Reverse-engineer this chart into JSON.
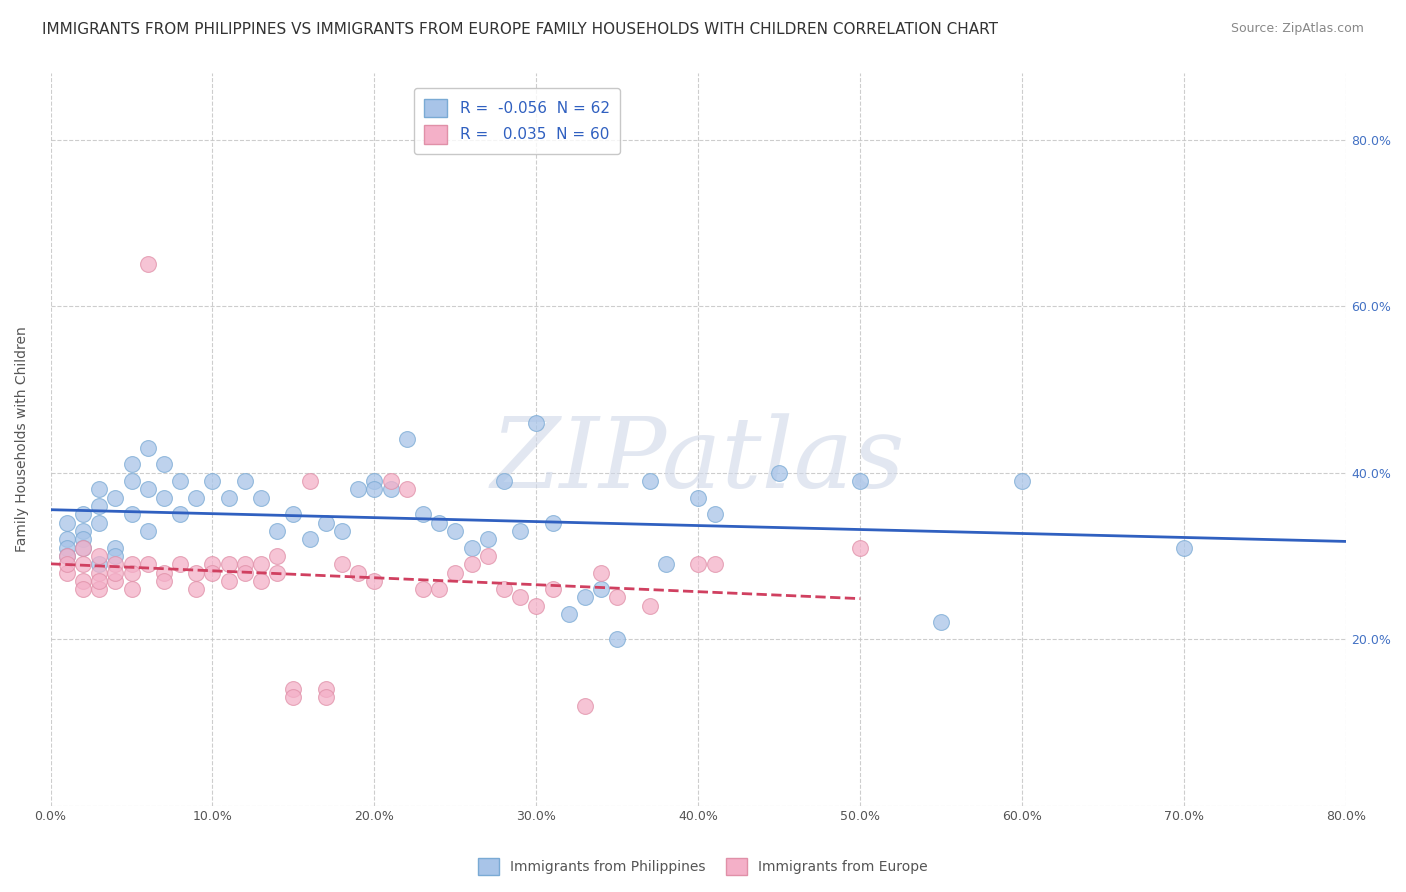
{
  "title": "IMMIGRANTS FROM PHILIPPINES VS IMMIGRANTS FROM EUROPE FAMILY HOUSEHOLDS WITH CHILDREN CORRELATION CHART",
  "source": "Source: ZipAtlas.com",
  "ylabel": "Family Households with Children",
  "legend_series": [
    {
      "label": "Immigrants from Philippines",
      "R": -0.056,
      "N": 62
    },
    {
      "label": "Immigrants from Europe",
      "R": 0.035,
      "N": 60
    }
  ],
  "xlim": [
    0.0,
    0.8
  ],
  "ylim": [
    0.0,
    0.88
  ],
  "xticks": [
    0.0,
    0.1,
    0.2,
    0.3,
    0.4,
    0.5,
    0.6,
    0.7,
    0.8
  ],
  "yticks": [
    0.0,
    0.2,
    0.4,
    0.6,
    0.8
  ],
  "phil_scatter_color": "#a8c4e8",
  "phil_edge_color": "#7aaad4",
  "eur_scatter_color": "#f4b0c8",
  "eur_edge_color": "#e090a8",
  "phil_trend_color": "#3060c0",
  "eur_trend_color": "#d04060",
  "background_color": "#ffffff",
  "grid_color": "#c8c8c8",
  "watermark_text": "ZIPatlas",
  "title_fontsize": 11,
  "axis_label_fontsize": 10,
  "tick_fontsize": 9,
  "right_tick_color": "#4472c4",
  "philippines_scatter": [
    [
      0.01,
      0.32
    ],
    [
      0.01,
      0.34
    ],
    [
      0.01,
      0.31
    ],
    [
      0.01,
      0.3
    ],
    [
      0.02,
      0.33
    ],
    [
      0.02,
      0.35
    ],
    [
      0.02,
      0.32
    ],
    [
      0.02,
      0.31
    ],
    [
      0.03,
      0.34
    ],
    [
      0.03,
      0.36
    ],
    [
      0.03,
      0.29
    ],
    [
      0.03,
      0.38
    ],
    [
      0.04,
      0.37
    ],
    [
      0.04,
      0.31
    ],
    [
      0.04,
      0.3
    ],
    [
      0.05,
      0.41
    ],
    [
      0.05,
      0.39
    ],
    [
      0.05,
      0.35
    ],
    [
      0.06,
      0.43
    ],
    [
      0.06,
      0.38
    ],
    [
      0.06,
      0.33
    ],
    [
      0.07,
      0.41
    ],
    [
      0.07,
      0.37
    ],
    [
      0.08,
      0.39
    ],
    [
      0.08,
      0.35
    ],
    [
      0.09,
      0.37
    ],
    [
      0.1,
      0.39
    ],
    [
      0.11,
      0.37
    ],
    [
      0.12,
      0.39
    ],
    [
      0.13,
      0.37
    ],
    [
      0.14,
      0.33
    ],
    [
      0.15,
      0.35
    ],
    [
      0.16,
      0.32
    ],
    [
      0.17,
      0.34
    ],
    [
      0.18,
      0.33
    ],
    [
      0.19,
      0.38
    ],
    [
      0.2,
      0.39
    ],
    [
      0.2,
      0.38
    ],
    [
      0.21,
      0.38
    ],
    [
      0.22,
      0.44
    ],
    [
      0.23,
      0.35
    ],
    [
      0.24,
      0.34
    ],
    [
      0.25,
      0.33
    ],
    [
      0.26,
      0.31
    ],
    [
      0.27,
      0.32
    ],
    [
      0.28,
      0.39
    ],
    [
      0.29,
      0.33
    ],
    [
      0.3,
      0.46
    ],
    [
      0.31,
      0.34
    ],
    [
      0.32,
      0.23
    ],
    [
      0.33,
      0.25
    ],
    [
      0.34,
      0.26
    ],
    [
      0.35,
      0.2
    ],
    [
      0.37,
      0.39
    ],
    [
      0.38,
      0.29
    ],
    [
      0.4,
      0.37
    ],
    [
      0.41,
      0.35
    ],
    [
      0.45,
      0.4
    ],
    [
      0.5,
      0.39
    ],
    [
      0.55,
      0.22
    ],
    [
      0.6,
      0.39
    ],
    [
      0.7,
      0.31
    ]
  ],
  "europe_scatter": [
    [
      0.01,
      0.3
    ],
    [
      0.01,
      0.28
    ],
    [
      0.01,
      0.29
    ],
    [
      0.02,
      0.31
    ],
    [
      0.02,
      0.29
    ],
    [
      0.02,
      0.27
    ],
    [
      0.02,
      0.26
    ],
    [
      0.03,
      0.3
    ],
    [
      0.03,
      0.28
    ],
    [
      0.03,
      0.26
    ],
    [
      0.03,
      0.27
    ],
    [
      0.04,
      0.29
    ],
    [
      0.04,
      0.27
    ],
    [
      0.04,
      0.28
    ],
    [
      0.05,
      0.29
    ],
    [
      0.05,
      0.28
    ],
    [
      0.05,
      0.26
    ],
    [
      0.06,
      0.65
    ],
    [
      0.06,
      0.29
    ],
    [
      0.07,
      0.28
    ],
    [
      0.07,
      0.27
    ],
    [
      0.08,
      0.29
    ],
    [
      0.09,
      0.28
    ],
    [
      0.09,
      0.26
    ],
    [
      0.1,
      0.29
    ],
    [
      0.1,
      0.28
    ],
    [
      0.11,
      0.29
    ],
    [
      0.11,
      0.27
    ],
    [
      0.12,
      0.29
    ],
    [
      0.12,
      0.28
    ],
    [
      0.13,
      0.29
    ],
    [
      0.13,
      0.27
    ],
    [
      0.14,
      0.3
    ],
    [
      0.14,
      0.28
    ],
    [
      0.15,
      0.14
    ],
    [
      0.15,
      0.13
    ],
    [
      0.16,
      0.39
    ],
    [
      0.17,
      0.14
    ],
    [
      0.17,
      0.13
    ],
    [
      0.18,
      0.29
    ],
    [
      0.19,
      0.28
    ],
    [
      0.2,
      0.27
    ],
    [
      0.21,
      0.39
    ],
    [
      0.22,
      0.38
    ],
    [
      0.23,
      0.26
    ],
    [
      0.24,
      0.26
    ],
    [
      0.25,
      0.28
    ],
    [
      0.26,
      0.29
    ],
    [
      0.27,
      0.3
    ],
    [
      0.28,
      0.26
    ],
    [
      0.29,
      0.25
    ],
    [
      0.3,
      0.24
    ],
    [
      0.31,
      0.26
    ],
    [
      0.33,
      0.12
    ],
    [
      0.34,
      0.28
    ],
    [
      0.35,
      0.25
    ],
    [
      0.37,
      0.24
    ],
    [
      0.4,
      0.29
    ],
    [
      0.41,
      0.29
    ],
    [
      0.5,
      0.31
    ]
  ]
}
